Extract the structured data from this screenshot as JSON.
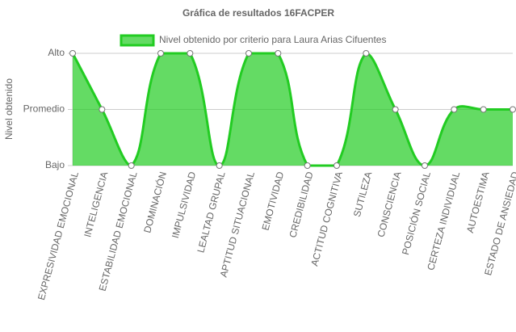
{
  "chart_data": {
    "type": "line",
    "title": "Gráfica de resultados 16FACPER",
    "y_label": "Nivel obtenido",
    "categories": [
      "EXPRESIVIDAD EMOCIONAL",
      "INTELIGENCIA",
      "ESTABILIDAD EMOCIONAL",
      "DOMINACIÓN",
      "IMPULSIVIDAD",
      "LEALTAD GRUPAL",
      "APTITUD SITUACIONAL",
      "EMOTIVIDAD",
      "CREDIBILIDAD",
      "ACTITUD COGNITIVA",
      "SUTILEZA",
      "CONSCIENCIA",
      "POSICIÓN SOCIAL",
      "CERTEZA INDIVIDUAL",
      "AUTOESTIMA",
      "ESTADO DE ANSIEDAD"
    ],
    "series": [
      {
        "name": "Nivel obtenido por criterio para Laura Arias Cifuentes",
        "color": "#22cc22",
        "values": [
          3,
          2,
          1,
          3,
          3,
          1,
          3,
          3,
          1,
          1,
          3,
          2,
          1,
          2,
          2,
          2
        ]
      }
    ],
    "ylim": [
      1,
      3
    ],
    "yticks": [
      {
        "value": 1,
        "label": "Bajo"
      },
      {
        "value": 2,
        "label": "Promedio"
      },
      {
        "value": 3,
        "label": "Alto"
      }
    ],
    "grid": true,
    "fill": true,
    "legend": "top"
  }
}
